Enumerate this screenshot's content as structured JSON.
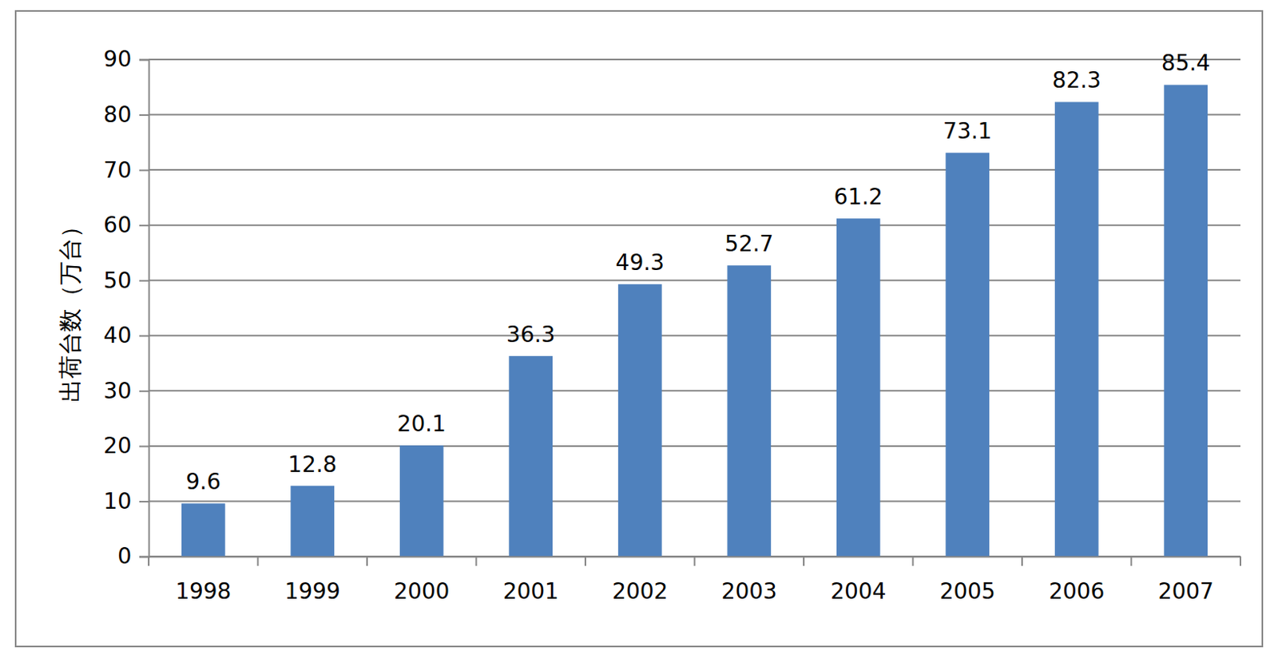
{
  "chart_data": {
    "type": "bar",
    "y_label": "出荷台数（万台）",
    "categories": [
      "1998",
      "1999",
      "2000",
      "2001",
      "2002",
      "2003",
      "2004",
      "2005",
      "2006",
      "2007"
    ],
    "values": [
      9.6,
      12.8,
      20.1,
      36.3,
      49.3,
      52.7,
      61.2,
      73.1,
      82.3,
      85.4
    ],
    "color": "#4f81bd",
    "ylim": [
      0,
      90
    ],
    "yticks": [
      0,
      10,
      20,
      30,
      40,
      50,
      60,
      70,
      80,
      90
    ],
    "grid": true,
    "data_labels": true
  }
}
